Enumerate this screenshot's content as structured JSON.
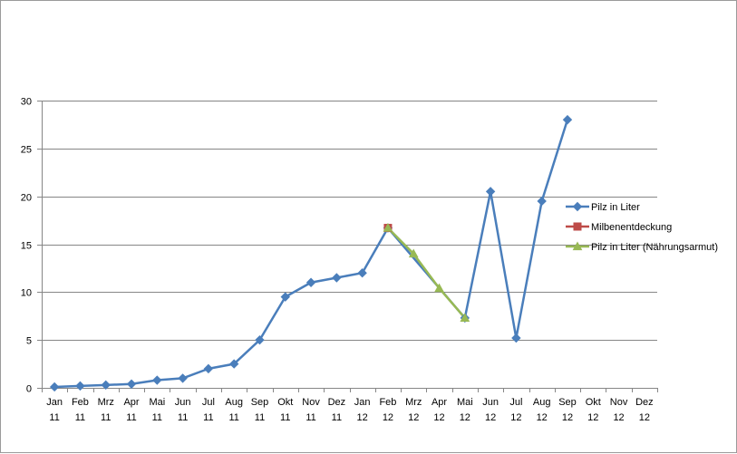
{
  "chart_data": {
    "type": "line",
    "categories": [
      [
        "Jan",
        "11"
      ],
      [
        "Feb",
        "11"
      ],
      [
        "Mrz",
        "11"
      ],
      [
        "Apr",
        "11"
      ],
      [
        "Mai",
        "11"
      ],
      [
        "Jun",
        "11"
      ],
      [
        "Jul",
        "11"
      ],
      [
        "Aug",
        "11"
      ],
      [
        "Sep",
        "11"
      ],
      [
        "Okt",
        "11"
      ],
      [
        "Nov",
        "11"
      ],
      [
        "Dez",
        "11"
      ],
      [
        "Jan",
        "12"
      ],
      [
        "Feb",
        "12"
      ],
      [
        "Mrz",
        "12"
      ],
      [
        "Apr",
        "12"
      ],
      [
        "Mai",
        "12"
      ],
      [
        "Jun",
        "12"
      ],
      [
        "Jul",
        "12"
      ],
      [
        "Aug",
        "12"
      ],
      [
        "Sep",
        "12"
      ],
      [
        "Okt",
        "12"
      ],
      [
        "Nov",
        "12"
      ],
      [
        "Dez",
        "12"
      ]
    ],
    "ylim": [
      0,
      30
    ],
    "yticks": [
      0,
      5,
      10,
      15,
      20,
      25,
      30
    ],
    "grid": true,
    "legend_position": "right",
    "series": [
      {
        "name": "Pilz in Liter",
        "color": "#4a7ebb",
        "marker": "diamond",
        "values": [
          0.1,
          0.2,
          0.3,
          0.4,
          0.8,
          1.0,
          2.0,
          2.5,
          5.0,
          9.5,
          11.0,
          11.5,
          12.0,
          16.7,
          null,
          null,
          7.3,
          20.5,
          5.2,
          19.5,
          28.0,
          null,
          null,
          null
        ]
      },
      {
        "name": "Milbenentdeckung",
        "color": "#be4b48",
        "marker": "square",
        "values": [
          null,
          null,
          null,
          null,
          null,
          null,
          null,
          null,
          null,
          null,
          null,
          null,
          null,
          16.7,
          null,
          null,
          null,
          null,
          null,
          null,
          null,
          null,
          null,
          null
        ]
      },
      {
        "name": "Pilz in Liter (Nährungsarmut)",
        "color": "#98b954",
        "marker": "triangle",
        "values": [
          null,
          null,
          null,
          null,
          null,
          null,
          null,
          null,
          null,
          null,
          null,
          null,
          null,
          16.7,
          14.0,
          10.4,
          7.3,
          null,
          null,
          null,
          null,
          null,
          null,
          null
        ]
      }
    ]
  }
}
